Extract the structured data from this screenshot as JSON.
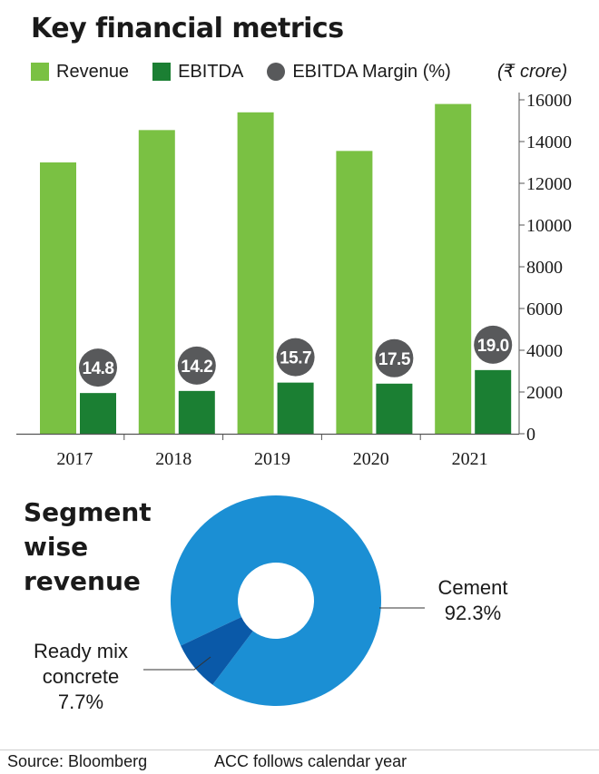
{
  "title": "Key financial metrics",
  "legend": [
    {
      "label": "Revenue",
      "color": "#7ac143",
      "shape": "square"
    },
    {
      "label": "EBITDA",
      "color": "#1b7f33",
      "shape": "square"
    },
    {
      "label": "EBITDA Margin (%)",
      "color": "#58595b",
      "shape": "circle"
    }
  ],
  "unit": "(₹ crore)",
  "chart_data": [
    {
      "type": "bar",
      "title": "Key financial metrics",
      "categories": [
        "2017",
        "2018",
        "2019",
        "2020",
        "2021"
      ],
      "series": [
        {
          "name": "Revenue",
          "values": [
            13000,
            14550,
            15400,
            13550,
            15800
          ],
          "color": "#7ac143"
        },
        {
          "name": "EBITDA",
          "values": [
            1950,
            2050,
            2450,
            2400,
            3050
          ],
          "color": "#1b7f33"
        },
        {
          "name": "EBITDA Margin (%)",
          "values": [
            14.8,
            14.2,
            15.7,
            17.5,
            19.0
          ],
          "color": "#58595b",
          "display": "circle labels"
        }
      ],
      "y_ticks": [
        0,
        2000,
        4000,
        6000,
        8000,
        10000,
        12000,
        14000,
        16000
      ],
      "ylim": [
        0,
        16000
      ],
      "yaxis_position": "right",
      "ylabel": "",
      "xlabel": "",
      "grid": false,
      "legend_position": "top"
    },
    {
      "type": "pie",
      "title": "Segment wise revenue",
      "labels": [
        "Cement",
        "Ready mix concrete"
      ],
      "values": [
        92.3,
        7.7
      ],
      "value_labels": [
        "92.3%",
        "7.7%"
      ],
      "colors": [
        "#1b8fd4",
        "#0a59a8"
      ],
      "donut": true
    }
  ],
  "segment_title_lines": [
    "Segment",
    "wise",
    "revenue"
  ],
  "segment_labels": {
    "cement": {
      "lines": [
        "Cement"
      ],
      "value": "92.3%"
    },
    "rmc": {
      "lines": [
        "Ready mix",
        "concrete"
      ],
      "value": "7.7%"
    }
  },
  "footer": {
    "source": "Source: Bloomberg",
    "note": "ACC follows calendar year"
  }
}
